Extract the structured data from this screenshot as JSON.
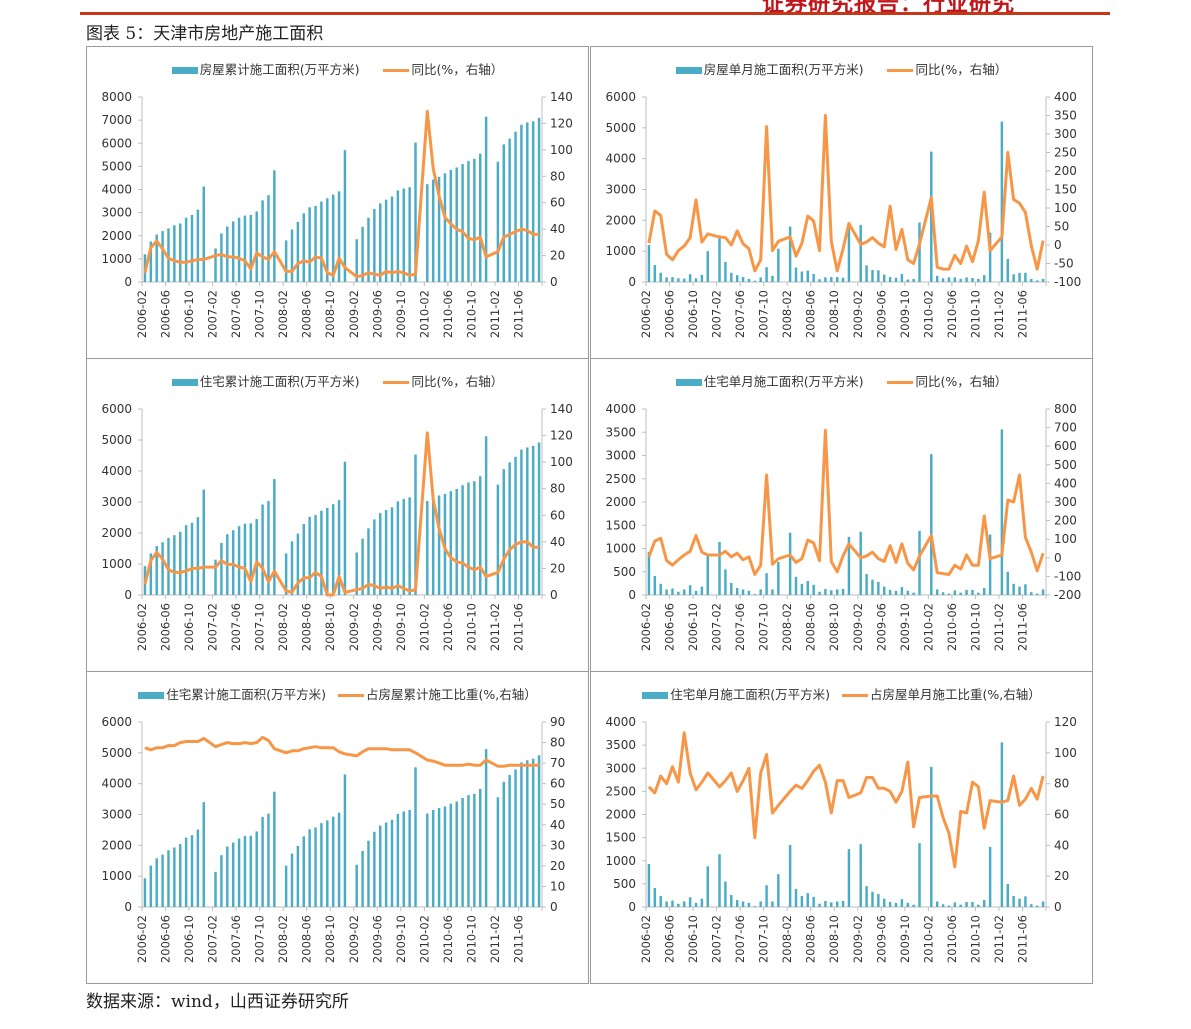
{
  "header": {
    "report_type": "证券研究报告：行业研究",
    "accent": "#c8361a"
  },
  "figure_title": "图表 5：天津市房地产施工面积",
  "source": "数据来源：wind，山西证券研究所",
  "colors": {
    "bar": "#4bacc6",
    "line": "#f79646"
  },
  "chart_data": [
    {
      "type": "bar+line",
      "title": "",
      "legend": [
        "房屋累计施工面积(万平方米)",
        "同比(%，右轴）"
      ],
      "x_tick_labels": [
        "2006-02",
        "2006-06",
        "2006-10",
        "2007-02",
        "2007-06",
        "2007-10",
        "2008-02",
        "2008-06",
        "2008-10",
        "2009-02",
        "2009-06",
        "2009-10",
        "2010-02",
        "2010-06",
        "2010-10",
        "2011-02",
        "2011-06"
      ],
      "ylim_left": [
        0,
        8000
      ],
      "yticks_left": [
        "0",
        "1000",
        "2000",
        "3000",
        "4000",
        "5000",
        "6000",
        "7000",
        "8000"
      ],
      "ylim_right": [
        0,
        140
      ],
      "yticks_right": [
        "0",
        "20",
        "40",
        "60",
        "80",
        "100",
        "120",
        "140"
      ],
      "bars": [
        [
          1200,
          1750,
          2050,
          2200,
          2320,
          2450,
          2530,
          2780,
          2900,
          3130,
          4130
        ],
        [
          1450,
          2100,
          2400,
          2620,
          2780,
          2870,
          2900,
          3050,
          3530,
          3750,
          4830
        ],
        [
          1800,
          2270,
          2600,
          2970,
          3230,
          3290,
          3480,
          3620,
          3780,
          3920,
          5700
        ],
        [
          1850,
          2390,
          2780,
          3160,
          3400,
          3560,
          3700,
          3960,
          4040,
          4100,
          6030
        ],
        [
          4230,
          4430,
          4550,
          4700,
          4850,
          4950,
          5100,
          5230,
          5330,
          5550,
          7150
        ],
        [
          5200,
          5950,
          6200,
          6500,
          6800,
          6900,
          6950,
          7100
        ]
      ],
      "line": [
        [
          7,
          26,
          31,
          25,
          18,
          16,
          15,
          15,
          16,
          17,
          17
        ],
        [
          20,
          21,
          19,
          19,
          18,
          16,
          10,
          22,
          19,
          17,
          23
        ],
        [
          8,
          8,
          14,
          16,
          15,
          19,
          18,
          7,
          5,
          18,
          11
        ],
        [
          4,
          5,
          7,
          6,
          5,
          8,
          7,
          8,
          7,
          5,
          6
        ],
        [
          129,
          86,
          65,
          49,
          44,
          40,
          38,
          33,
          32,
          34,
          19
        ],
        [
          23,
          34,
          36,
          38,
          40,
          39,
          36,
          36
        ]
      ]
    },
    {
      "type": "bar+line",
      "title": "",
      "legend": [
        "房屋单月施工面积(万平方米)",
        "同比(%，右轴）"
      ],
      "x_tick_labels": [
        "2006-02",
        "2006-06",
        "2006-10",
        "2007-02",
        "2007-06",
        "2007-10",
        "2008-02",
        "2008-06",
        "2008-10",
        "2009-02",
        "2009-06",
        "2009-10",
        "2010-02",
        "2010-06",
        "2010-10",
        "2011-02",
        "2011-06"
      ],
      "ylim_left": [
        0,
        6000
      ],
      "yticks_left": [
        "0",
        "1000",
        "2000",
        "3000",
        "4000",
        "5000",
        "6000"
      ],
      "ylim_right": [
        -100,
        400
      ],
      "yticks_right": [
        "-100",
        "-50",
        "0",
        "50",
        "100",
        "150",
        "200",
        "250",
        "300",
        "350",
        "400"
      ],
      "bars": [
        [
          1200,
          550,
          300,
          150,
          160,
          120,
          110,
          250,
          120,
          230,
          1000
        ],
        [
          1450,
          650,
          300,
          220,
          160,
          100,
          40,
          150,
          480,
          200,
          1080
        ],
        [
          1800,
          470,
          340,
          370,
          260,
          90,
          150,
          160,
          160,
          140,
          1780
        ],
        [
          1850,
          540,
          390,
          380,
          240,
          160,
          140,
          260,
          80,
          100,
          1930
        ],
        [
          4230,
          200,
          120,
          150,
          150,
          100,
          150,
          130,
          100,
          220,
          1600
        ],
        [
          5200,
          750,
          250,
          300,
          300,
          100,
          50,
          100
        ]
      ],
      "line": [
        [
          5,
          92,
          80,
          -25,
          -40,
          -15,
          -3,
          20,
          122,
          8,
          30
        ],
        [
          22,
          20,
          0,
          38,
          3,
          -10,
          -70,
          -40,
          320,
          -15,
          10
        ],
        [
          22,
          -30,
          5,
          78,
          65,
          -15,
          350,
          10,
          -70,
          -10,
          58
        ],
        [
          2,
          8,
          20,
          5,
          -5,
          105,
          -12,
          42,
          -40,
          -50,
          3
        ],
        [
          128,
          -60,
          -65,
          -65,
          -28,
          -50,
          -3,
          -45,
          12,
          143,
          -15
        ],
        [
          22,
          250,
          123,
          113,
          88,
          -2,
          -65,
          12
        ]
      ]
    },
    {
      "type": "bar+line",
      "title": "",
      "legend": [
        "住宅累计施工面积(万平方米)",
        "同比(%，右轴）"
      ],
      "x_tick_labels": [
        "2006-02",
        "2006-06",
        "2006-10",
        "2007-02",
        "2007-06",
        "2007-10",
        "2008-02",
        "2008-06",
        "2008-10",
        "2009-02",
        "2009-06",
        "2009-10",
        "2010-02",
        "2010-06",
        "2010-10",
        "2011-02",
        "2011-06"
      ],
      "ylim_left": [
        0,
        6000
      ],
      "yticks_left": [
        "0",
        "1000",
        "2000",
        "3000",
        "4000",
        "5000",
        "6000"
      ],
      "ylim_right": [
        0,
        140
      ],
      "yticks_right": [
        "0",
        "20",
        "40",
        "60",
        "80",
        "100",
        "120",
        "140"
      ],
      "bars": [
        [
          930,
          1340,
          1580,
          1700,
          1840,
          1930,
          2040,
          2250,
          2330,
          2510,
          3400
        ],
        [
          1140,
          1680,
          1960,
          2090,
          2220,
          2300,
          2310,
          2450,
          2920,
          3030,
          3740
        ],
        [
          1340,
          1730,
          1980,
          2290,
          2520,
          2580,
          2720,
          2810,
          2930,
          3060,
          4300
        ],
        [
          1370,
          1820,
          2150,
          2440,
          2640,
          2740,
          2830,
          3020,
          3100,
          3150,
          4530
        ],
        [
          3030,
          3150,
          3210,
          3260,
          3350,
          3420,
          3540,
          3630,
          3670,
          3830,
          5120
        ],
        [
          3560,
          4060,
          4280,
          4460,
          4690,
          4760,
          4810,
          4920
        ]
      ],
      "line": [
        [
          8,
          26,
          32,
          27,
          19,
          17,
          17,
          18,
          20,
          20,
          21
        ],
        [
          21,
          26,
          23,
          23,
          21,
          20,
          10,
          25,
          20,
          10,
          18
        ],
        [
          3,
          2,
          9,
          13,
          13,
          17,
          14,
          0,
          0,
          14,
          2
        ],
        [
          4,
          5,
          8,
          7,
          5,
          6,
          5,
          7,
          5,
          3,
          4
        ],
        [
          122,
          72,
          50,
          35,
          28,
          25,
          24,
          21,
          19,
          21,
          14
        ],
        [
          17,
          27,
          34,
          38,
          40,
          40,
          36,
          36
        ]
      ]
    },
    {
      "type": "bar+line",
      "title": "",
      "legend": [
        "住宅单月施工面积(万平方米)",
        "同比(%，右轴）"
      ],
      "x_tick_labels": [
        "2006-02",
        "2006-06",
        "2006-10",
        "2007-02",
        "2007-06",
        "2007-10",
        "2008-02",
        "2008-06",
        "2008-10",
        "2009-02",
        "2009-06",
        "2009-10",
        "2010-02",
        "2010-06",
        "2010-10",
        "2011-02",
        "2011-06"
      ],
      "ylim_left": [
        0,
        4000
      ],
      "yticks_left": [
        "0",
        "500",
        "1000",
        "1500",
        "2000",
        "2500",
        "3000",
        "3500",
        "4000"
      ],
      "ylim_right": [
        -200,
        800
      ],
      "yticks_right": [
        "-200",
        "-100",
        "0",
        "100",
        "200",
        "300",
        "400",
        "500",
        "600",
        "700",
        "800"
      ],
      "bars": [
        [
          930,
          410,
          240,
          120,
          140,
          70,
          120,
          210,
          90,
          180,
          880
        ],
        [
          1140,
          550,
          260,
          150,
          120,
          90,
          20,
          120,
          470,
          120,
          710
        ],
        [
          1340,
          390,
          240,
          300,
          220,
          70,
          130,
          100,
          120,
          130,
          1250
        ],
        [
          1360,
          450,
          330,
          280,
          180,
          110,
          90,
          170,
          90,
          50,
          1380
        ],
        [
          3030,
          120,
          60,
          30,
          100,
          50,
          110,
          110,
          50,
          150,
          1300
        ],
        [
          3560,
          500,
          240,
          180,
          230,
          60,
          30,
          120
        ]
      ],
      "line": [
        [
          5,
          90,
          105,
          -15,
          -40,
          -10,
          15,
          35,
          120,
          30,
          15
        ],
        [
          15,
          35,
          5,
          25,
          -10,
          5,
          -90,
          -40,
          445,
          -35,
          -5
        ],
        [
          15,
          -25,
          -5,
          95,
          80,
          -15,
          685,
          -20,
          -75,
          10,
          75
        ],
        [
          0,
          10,
          30,
          -5,
          -20,
          65,
          -25,
          75,
          -30,
          -65,
          10
        ],
        [
          120,
          -80,
          -85,
          -90,
          -40,
          -60,
          15,
          -40,
          -40,
          225,
          -5
        ],
        [
          15,
          310,
          300,
          445,
          110,
          30,
          -70,
          25
        ]
      ]
    },
    {
      "type": "bar+line",
      "title": "",
      "legend": [
        "住宅累计施工面积(万平方米)",
        "占房屋累计施工比重(%,右轴）"
      ],
      "x_tick_labels": [
        "2006-02",
        "2006-06",
        "2006-10",
        "2007-02",
        "2007-06",
        "2007-10",
        "2008-02",
        "2008-06",
        "2008-10",
        "2009-02",
        "2009-06",
        "2009-10",
        "2010-02",
        "2010-06",
        "2010-10",
        "2011-02",
        "2011-06"
      ],
      "ylim_left": [
        0,
        6000
      ],
      "yticks_left": [
        "0",
        "1000",
        "2000",
        "3000",
        "4000",
        "5000",
        "6000"
      ],
      "ylim_right": [
        0,
        90
      ],
      "yticks_right": [
        "0",
        "10",
        "20",
        "30",
        "40",
        "50",
        "60",
        "70",
        "80",
        "90"
      ],
      "bars": [
        [
          930,
          1340,
          1580,
          1700,
          1840,
          1930,
          2040,
          2250,
          2330,
          2510,
          3400
        ],
        [
          1140,
          1680,
          1960,
          2090,
          2220,
          2300,
          2310,
          2450,
          2920,
          3030,
          3740
        ],
        [
          1340,
          1730,
          1980,
          2290,
          2520,
          2580,
          2720,
          2810,
          2930,
          3060,
          4300
        ],
        [
          1370,
          1820,
          2150,
          2440,
          2640,
          2740,
          2830,
          3020,
          3100,
          3150,
          4530
        ],
        [
          3030,
          3150,
          3210,
          3260,
          3350,
          3420,
          3540,
          3630,
          3670,
          3830,
          5120
        ],
        [
          3560,
          4060,
          4280,
          4460,
          4690,
          4760,
          4810,
          4920
        ]
      ],
      "line": [
        [
          77.5,
          76.5,
          77.5,
          77.5,
          78.5,
          78.5,
          80,
          80.5,
          80.5,
          80.5,
          82
        ],
        [
          78,
          79,
          80,
          79.5,
          79.5,
          80,
          79.5,
          80,
          82.5,
          81,
          77
        ],
        [
          75,
          76,
          76,
          77,
          77.5,
          78,
          77.5,
          77.5,
          77.5,
          75.5,
          74.5
        ],
        [
          73.5,
          75.5,
          77,
          77,
          77,
          77,
          76.5,
          76.5,
          76.5,
          76.5,
          75
        ],
        [
          71.5,
          71,
          70,
          69,
          69,
          69,
          69,
          69.5,
          69,
          69,
          71.5
        ],
        [
          68.5,
          68.5,
          69,
          69,
          69,
          69,
          69,
          69
        ]
      ]
    },
    {
      "type": "bar+line",
      "title": "",
      "legend": [
        "住宅单月施工面积(万平方米)",
        "占房屋单月施工比重(%,右轴）"
      ],
      "x_tick_labels": [
        "2006-02",
        "2006-06",
        "2006-10",
        "2007-02",
        "2007-06",
        "2007-10",
        "2008-02",
        "2008-06",
        "2008-10",
        "2009-02",
        "2009-06",
        "2009-10",
        "2010-02",
        "2010-06",
        "2010-10",
        "2011-02",
        "2011-06"
      ],
      "ylim_left": [
        0,
        4000
      ],
      "yticks_left": [
        "0",
        "500",
        "1000",
        "1500",
        "2000",
        "2500",
        "3000",
        "3500",
        "4000"
      ],
      "ylim_right": [
        0,
        120
      ],
      "yticks_right": [
        "0",
        "20",
        "40",
        "60",
        "80",
        "100",
        "120"
      ],
      "bars": [
        [
          930,
          410,
          240,
          120,
          140,
          70,
          120,
          210,
          90,
          180,
          880
        ],
        [
          1140,
          550,
          260,
          150,
          120,
          90,
          20,
          120,
          470,
          120,
          710
        ],
        [
          1340,
          390,
          240,
          300,
          220,
          70,
          130,
          100,
          120,
          130,
          1250
        ],
        [
          1360,
          450,
          330,
          280,
          180,
          110,
          90,
          170,
          90,
          50,
          1380
        ],
        [
          3030,
          120,
          60,
          30,
          100,
          50,
          110,
          110,
          50,
          150,
          1300
        ],
        [
          3560,
          500,
          240,
          180,
          230,
          60,
          30,
          120
        ]
      ],
      "line": [
        [
          78,
          74,
          85,
          80,
          91,
          81,
          113,
          87,
          76,
          81,
          87
        ],
        [
          78,
          82,
          87,
          75,
          82,
          90,
          45,
          87,
          99,
          61,
          66
        ],
        [
          75,
          79,
          77,
          82,
          88,
          92,
          81,
          61,
          82,
          82,
          71
        ],
        [
          74,
          84,
          84,
          77,
          77,
          75,
          68,
          75,
          94,
          52,
          71
        ],
        [
          72,
          72,
          58,
          48,
          26,
          62,
          61,
          81,
          78,
          51,
          69
        ],
        [
          68,
          69,
          85,
          66,
          70,
          77,
          70,
          85
        ]
      ]
    }
  ]
}
